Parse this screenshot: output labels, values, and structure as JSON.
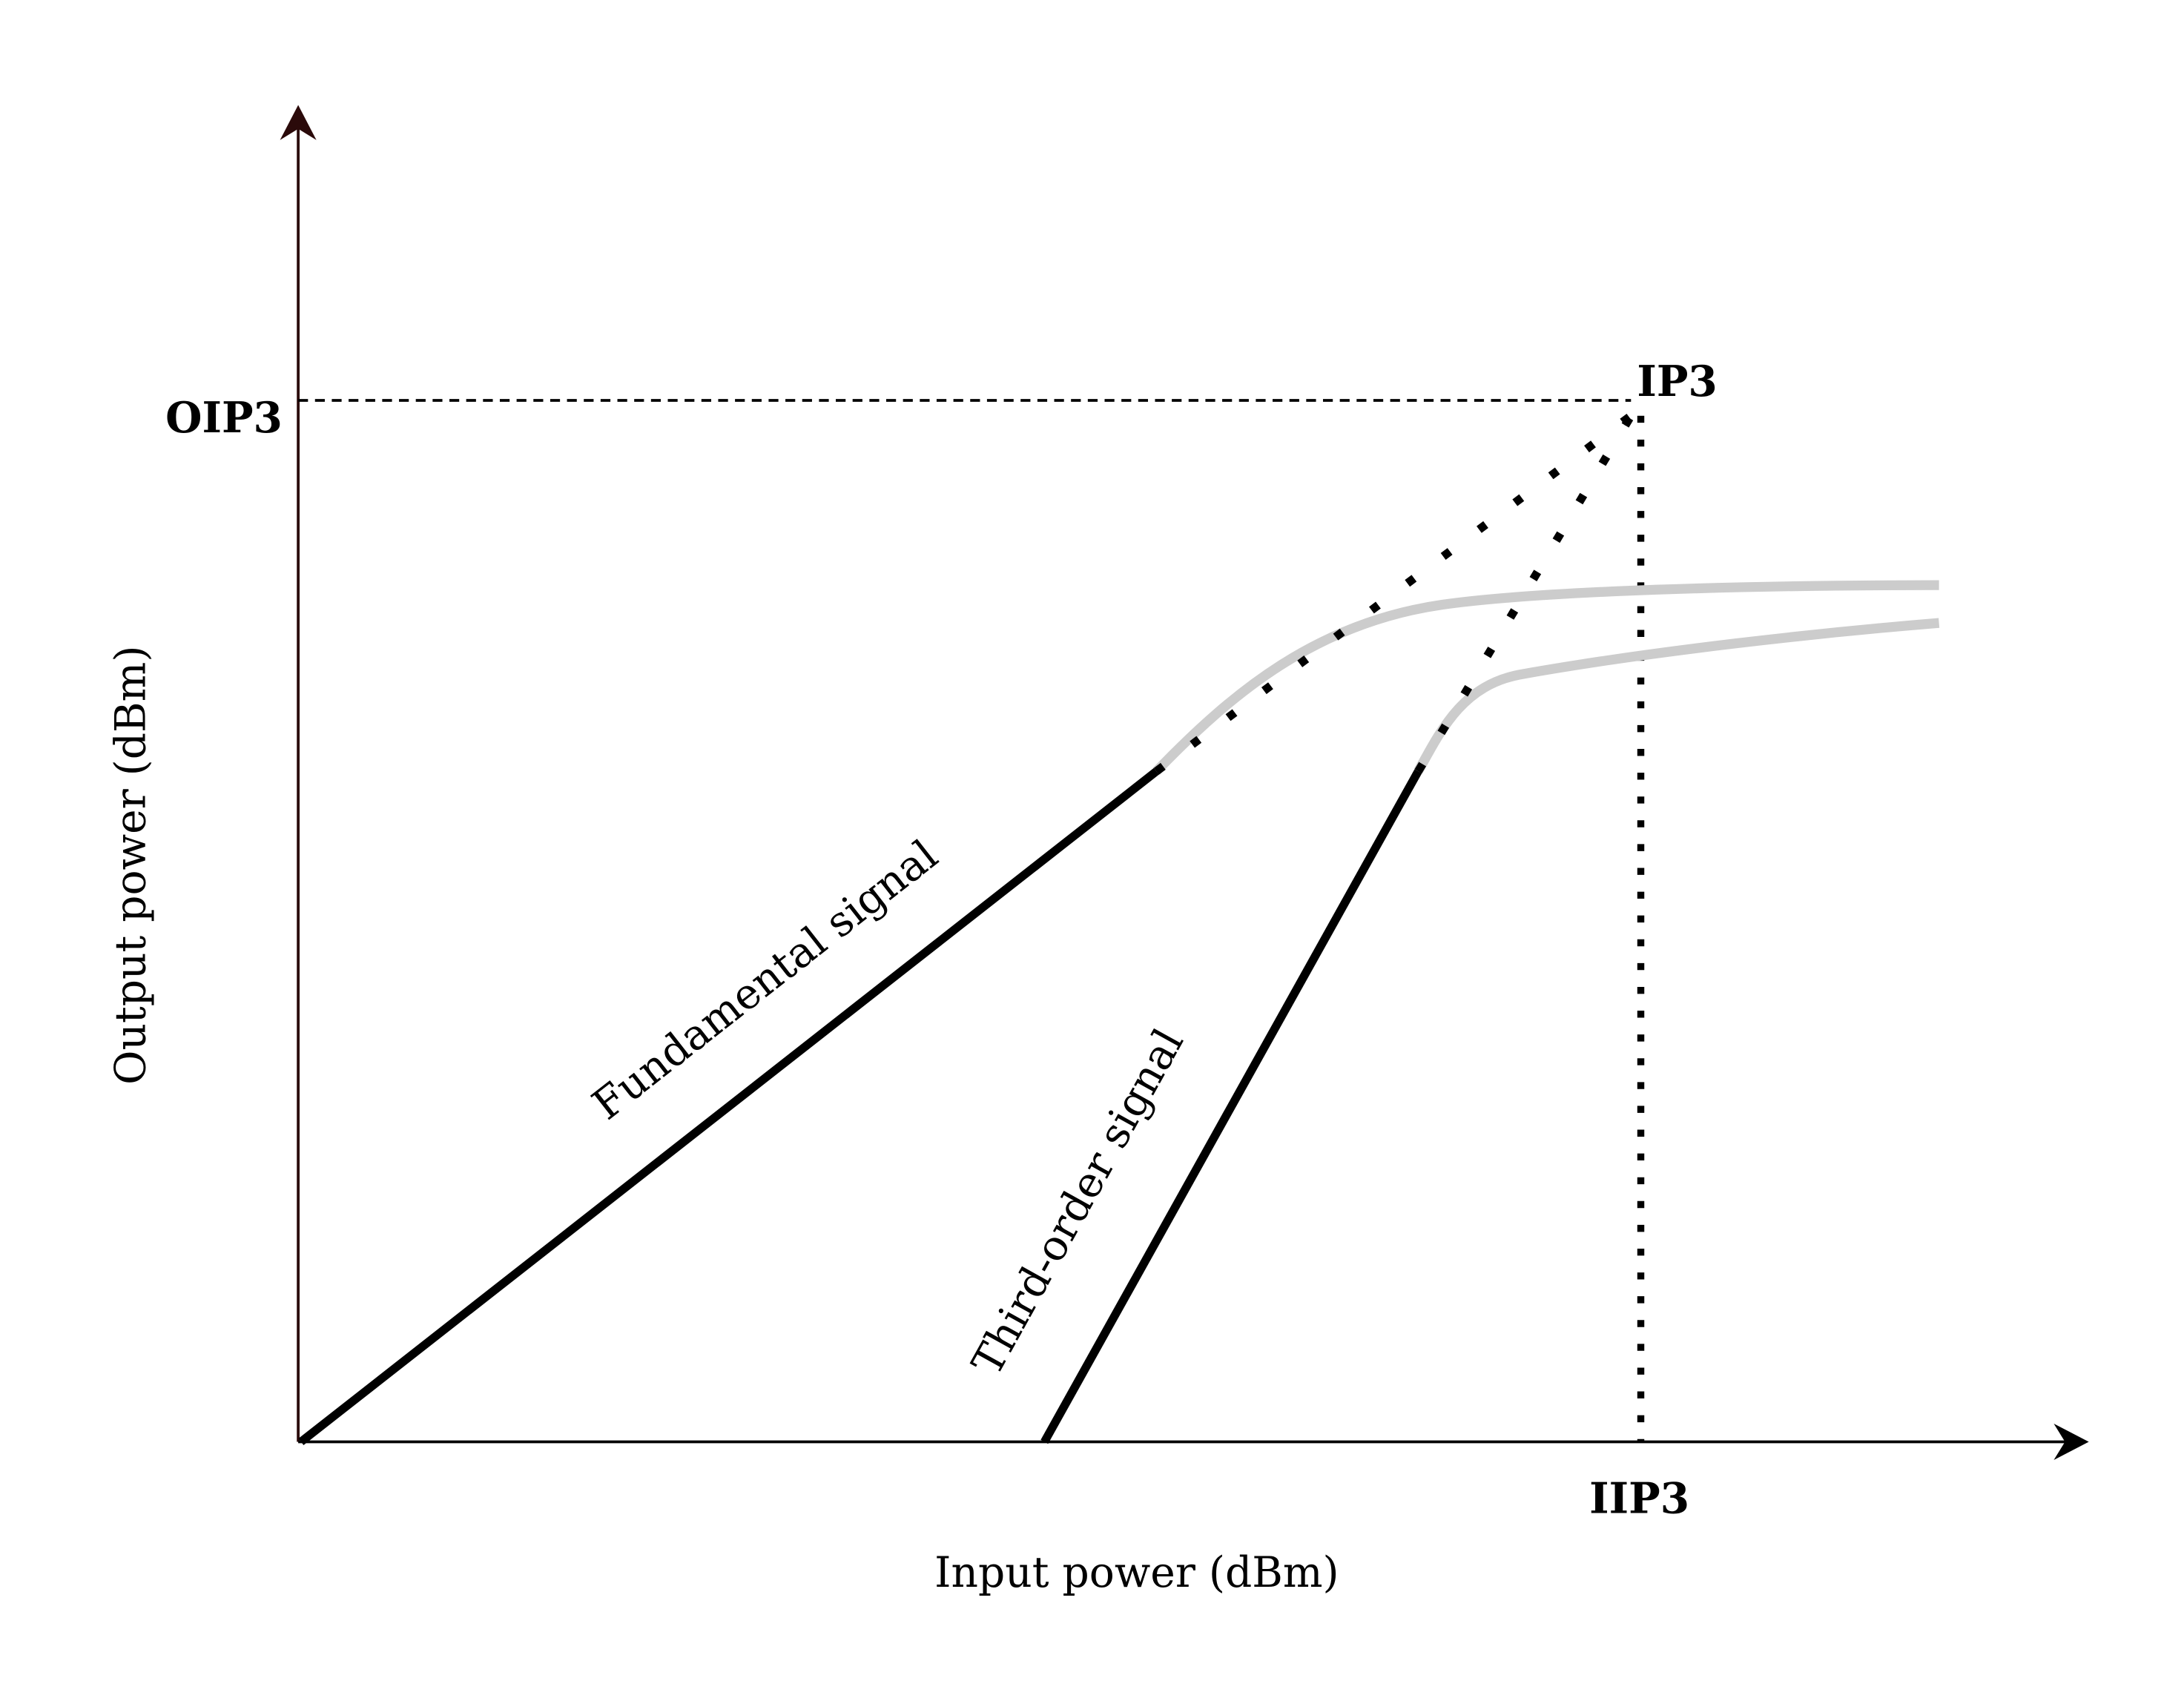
{
  "axes": {
    "x_label": "Input power (dBm)",
    "y_label": "Output power (dBm)"
  },
  "markers": {
    "oip3": "OIP3",
    "ip3": "IP3",
    "iip3": "IIP3"
  },
  "curves": {
    "fundamental": "Fundamental signal",
    "third_order": "Third-order signal"
  }
}
